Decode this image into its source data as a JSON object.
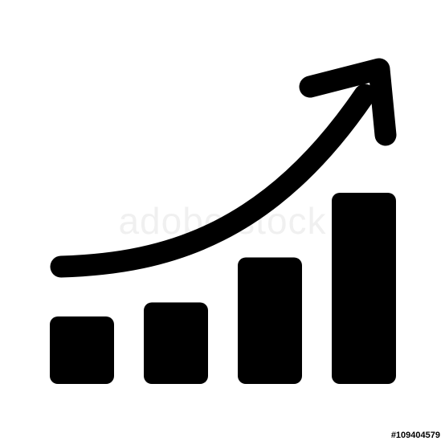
{
  "colors": {
    "background": "#ffffff",
    "icon": "#000000"
  },
  "icon": {
    "name": "growth-chart-icon",
    "bar_levels": [
      0.24,
      0.29,
      0.45,
      0.68
    ]
  },
  "watermark": {
    "text": "adobe stock"
  },
  "image_id": {
    "text": "#109404579"
  }
}
